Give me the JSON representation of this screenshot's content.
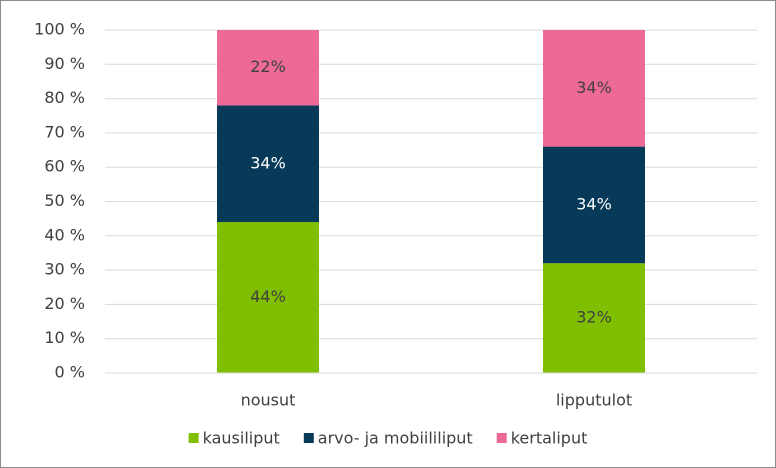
{
  "chart_data": {
    "type": "stacked_bar",
    "categories": [
      "nousut",
      "lipputulot"
    ],
    "series": [
      {
        "name": "kausiliput",
        "color": "#7fbf00",
        "values": [
          44,
          32
        ],
        "value_labels": [
          "44%",
          "32%"
        ]
      },
      {
        "name": "arvo- ja mobiililiput",
        "color": "#063a58",
        "values": [
          34,
          34
        ],
        "value_labels": [
          "34%",
          "34%"
        ]
      },
      {
        "name": "kertaliput",
        "color": "#ec6a95",
        "values": [
          22,
          34
        ],
        "value_labels": [
          "22%",
          "34%"
        ]
      }
    ],
    "ylim": [
      0,
      100
    ],
    "yticks": [
      {
        "value": 0,
        "label": "0 %"
      },
      {
        "value": 10,
        "label": "10 %"
      },
      {
        "value": 20,
        "label": "20 %"
      },
      {
        "value": 30,
        "label": "30 %"
      },
      {
        "value": 40,
        "label": "40 %"
      },
      {
        "value": 50,
        "label": "50 %"
      },
      {
        "value": 60,
        "label": "60 %"
      },
      {
        "value": 70,
        "label": "70 %"
      },
      {
        "value": 80,
        "label": "80 %"
      },
      {
        "value": 90,
        "label": "90 %"
      },
      {
        "value": 100,
        "label": "100 %"
      }
    ],
    "grid": true,
    "legend": "bottom"
  }
}
